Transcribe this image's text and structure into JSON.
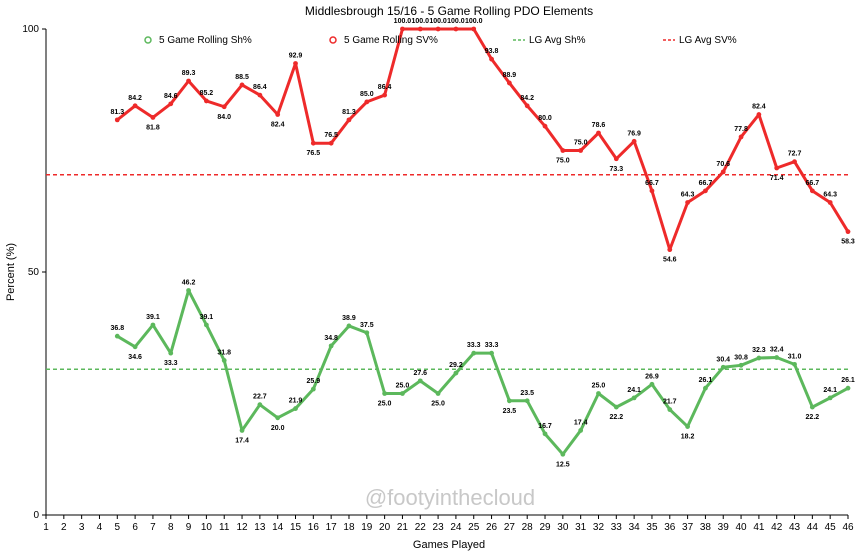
{
  "chart_data": {
    "type": "line",
    "title": "Middlesbrough 15/16 - 5 Game Rolling PDO Elements",
    "xlabel": "Games Played",
    "ylabel": "Percent (%)",
    "xlim": [
      1,
      46
    ],
    "ylim": [
      0,
      100
    ],
    "y_ticks": [
      "0",
      "50",
      "100"
    ],
    "x_ticks": [
      "1",
      "2",
      "3",
      "4",
      "5",
      "6",
      "7",
      "8",
      "9",
      "10",
      "11",
      "12",
      "13",
      "14",
      "15",
      "16",
      "17",
      "18",
      "19",
      "20",
      "21",
      "22",
      "23",
      "24",
      "25",
      "26",
      "27",
      "28",
      "29",
      "30",
      "31",
      "32",
      "33",
      "34",
      "35",
      "36",
      "37",
      "38",
      "39",
      "40",
      "41",
      "42",
      "43",
      "44",
      "45",
      "46"
    ],
    "legend_position": "top",
    "series": [
      {
        "name": "5 Game Rolling Sh%",
        "color": "#5cb85c",
        "x": [
          5,
          6,
          7,
          8,
          9,
          10,
          11,
          12,
          13,
          14,
          15,
          16,
          17,
          18,
          19,
          20,
          21,
          22,
          23,
          24,
          25,
          26,
          27,
          28,
          29,
          30,
          31,
          32,
          33,
          34,
          35,
          36,
          37,
          38,
          39,
          40,
          41,
          42,
          43,
          44,
          45,
          46
        ],
        "values": [
          36.8,
          34.6,
          39.1,
          33.3,
          46.2,
          39.1,
          31.8,
          17.4,
          22.7,
          20.0,
          21.9,
          25.9,
          34.8,
          38.9,
          37.5,
          25.0,
          25.0,
          27.6,
          25.0,
          29.2,
          33.3,
          33.3,
          23.5,
          23.5,
          16.7,
          12.5,
          17.4,
          25.0,
          22.2,
          24.1,
          26.9,
          21.7,
          18.2,
          26.1,
          30.4,
          30.8,
          32.3,
          32.4,
          31.0,
          22.2,
          24.1,
          26.1
        ],
        "labels": [
          "36.8",
          "34.6",
          "39.1",
          "33.3",
          "46.2",
          "39.1",
          "31.8",
          "17.4",
          "22.7",
          "20.0",
          "21.9",
          "25.9",
          "34.8",
          "38.9",
          "37.5",
          "25.0",
          "25.0",
          "27.6",
          "25.0",
          "29.2",
          "33.3",
          "33.3",
          "23.5",
          "23.5",
          "16.7",
          "12.5",
          "17.4",
          "25.0",
          "22.2",
          "24.1",
          "26.9",
          "21.7",
          "18.2",
          "26.1",
          "30.4",
          "30.8",
          "32.3",
          "32.4",
          "31.0",
          "22.2",
          "24.1",
          "26.1"
        ]
      },
      {
        "name": "5 Game Rolling SV%",
        "color": "#ee2a2a",
        "x": [
          5,
          6,
          7,
          8,
          9,
          10,
          11,
          12,
          13,
          14,
          15,
          16,
          17,
          18,
          19,
          20,
          21,
          22,
          23,
          24,
          25,
          26,
          27,
          28,
          29,
          30,
          31,
          32,
          33,
          34,
          35,
          36,
          37,
          38,
          39,
          40,
          41,
          42,
          43,
          44,
          45,
          46
        ],
        "values": [
          81.3,
          84.2,
          81.8,
          84.6,
          89.3,
          85.2,
          84.0,
          88.5,
          86.4,
          82.4,
          92.9,
          76.5,
          76.5,
          81.3,
          85.0,
          86.4,
          100.0,
          100.0,
          100.0,
          100.0,
          100.0,
          93.8,
          88.9,
          84.2,
          80.0,
          75.0,
          75.0,
          78.6,
          73.3,
          76.9,
          66.7,
          54.6,
          64.3,
          66.7,
          70.6,
          77.8,
          82.4,
          71.4,
          72.7,
          66.7,
          64.3,
          58.3
        ],
        "labels": [
          "81.3",
          "84.2",
          "81.8",
          "84.6",
          "89.3",
          "85.2",
          "84.0",
          "88.5",
          "86.4",
          "82.4",
          "92.9",
          "76.5",
          "76.5",
          "81.3",
          "85.0",
          "86.4",
          "100.0",
          "100.0",
          "100.0",
          "100.0",
          "100.0",
          "93.8",
          "88.9",
          "84.2",
          "80.0",
          "75.0",
          "75.0",
          "78.6",
          "73.3",
          "76.9",
          "66.7",
          "54.6",
          "64.3",
          "66.7",
          "70.6",
          "77.8",
          "82.4",
          "71.4",
          "72.7",
          "66.7",
          "64.3",
          "58.3"
        ]
      }
    ],
    "reference_lines": [
      {
        "name": "LG Avg Sh%",
        "color": "#5cb85c",
        "value": 30.0,
        "style": "dashed"
      },
      {
        "name": "LG Avg SV%",
        "color": "#ee2a2a",
        "value": 70.0,
        "style": "dashed"
      }
    ],
    "watermark": "@footyinthecloud"
  }
}
